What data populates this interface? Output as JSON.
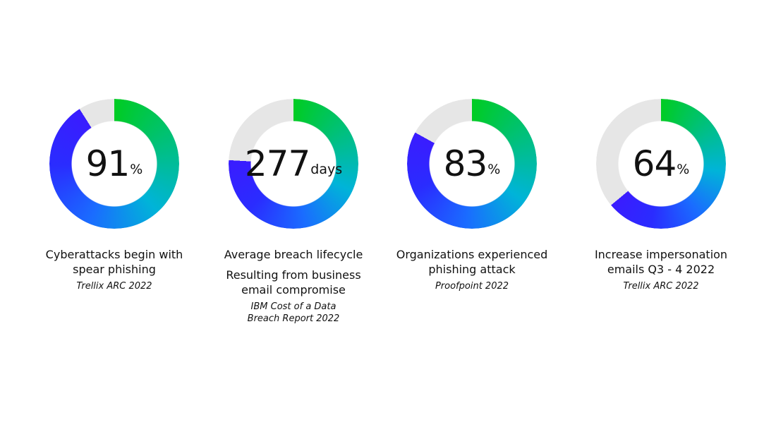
{
  "chart_data": [
    {
      "type": "donut",
      "values": [
        91
      ],
      "unit": "%",
      "ylim": [
        0,
        100
      ],
      "title": "Cyberattacks begin with spear phishing",
      "source": "Trellix ARC 2022"
    },
    {
      "type": "donut",
      "values": [
        277
      ],
      "unit": "days",
      "ylim": [
        0,
        365
      ],
      "title": "Average breach lifecycle",
      "subtitle": "Resulting from business email compromise",
      "source": "IBM Cost of a Data Breach Report 2022"
    },
    {
      "type": "donut",
      "values": [
        83
      ],
      "unit": "%",
      "ylim": [
        0,
        100
      ],
      "title": "Organizations experienced phishing attack",
      "source": "Proofpoint 2022"
    },
    {
      "type": "donut",
      "values": [
        64
      ],
      "unit": "%",
      "ylim": [
        0,
        100
      ],
      "title": "Increase  impersonation emails Q3 - 4 2022",
      "source": "Trellix ARC 2022"
    }
  ]
}
